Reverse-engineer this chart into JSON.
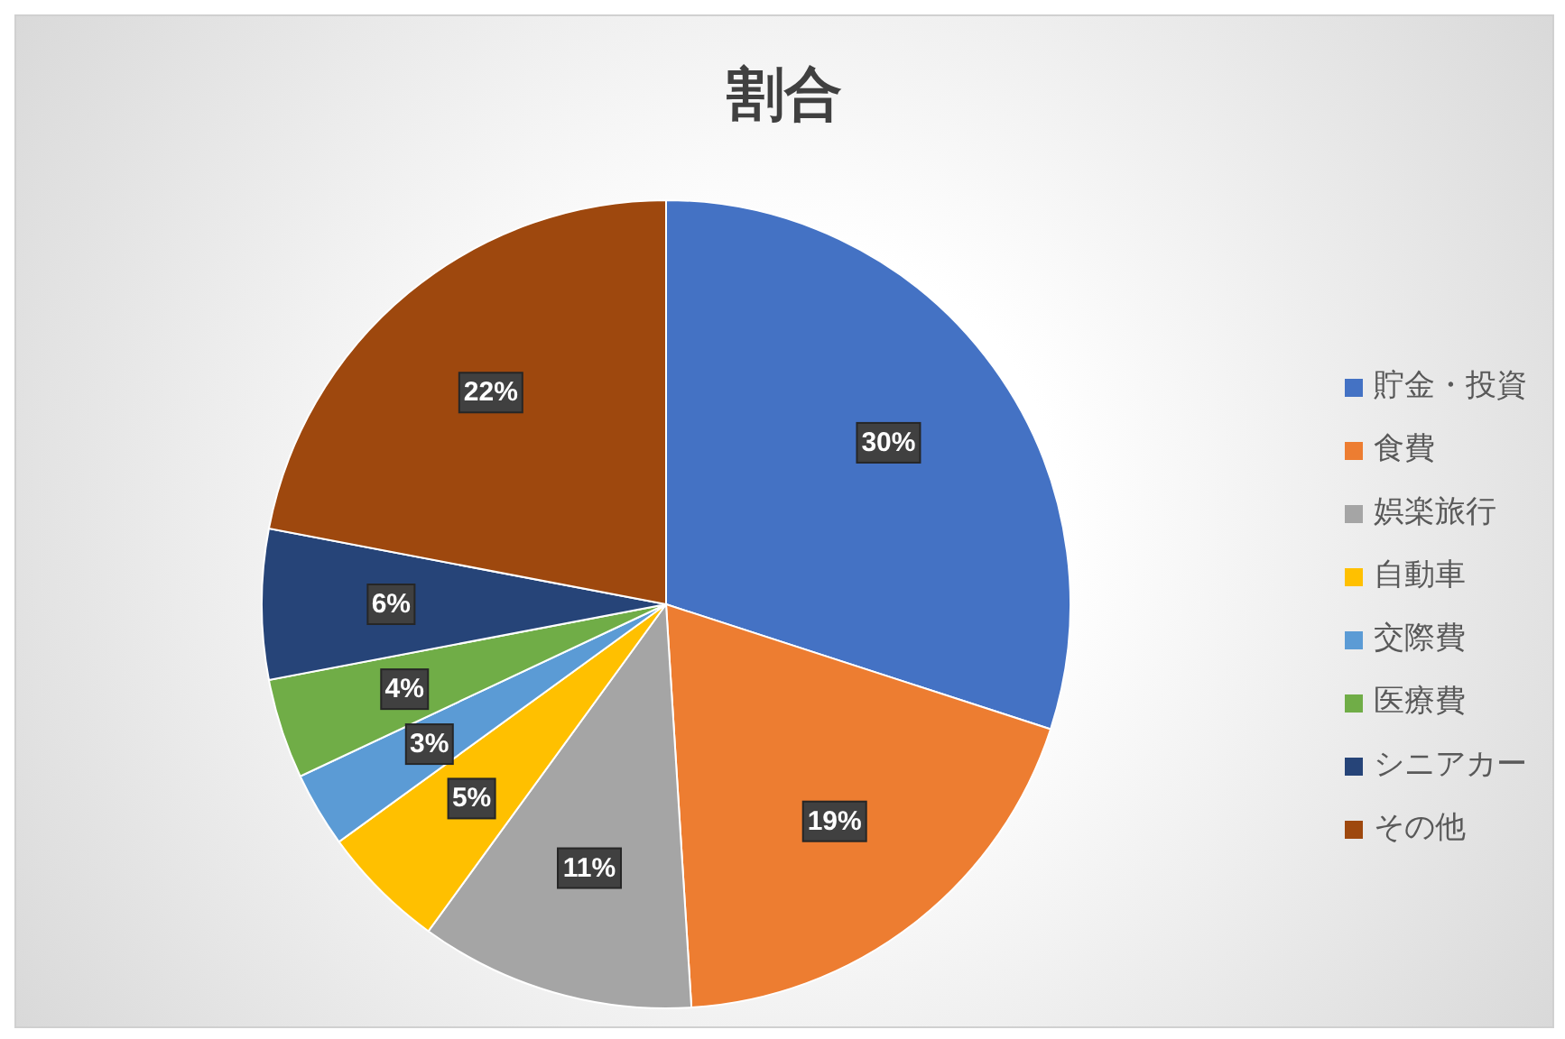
{
  "chart_data": {
    "type": "pie",
    "title": "割合",
    "categories": [
      "貯金・投資",
      "食費",
      "娯楽旅行",
      "自動車",
      "交際費",
      "医療費",
      "シニアカー",
      "その他"
    ],
    "values": [
      30,
      19,
      11,
      5,
      3,
      4,
      6,
      22
    ],
    "colors": [
      "#4472c4",
      "#ed7d31",
      "#a5a5a5",
      "#ffc000",
      "#5b9bd5",
      "#70ad47",
      "#264478",
      "#9e480e"
    ],
    "value_labels": [
      "30%",
      "19%",
      "11%",
      "5%",
      "3%",
      "4%",
      "6%",
      "22%"
    ],
    "legend": "right"
  }
}
